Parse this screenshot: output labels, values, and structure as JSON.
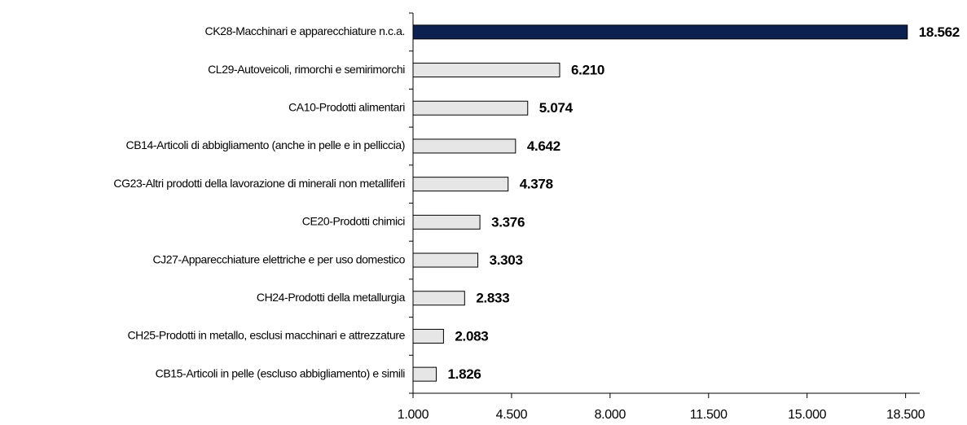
{
  "chart_data": {
    "type": "hbar",
    "categories": [
      "CK28-Macchinari e apparecchiature n.c.a.",
      "CL29-Autoveicoli, rimorchi e semirimorchi",
      "CA10-Prodotti alimentari",
      "CB14-Articoli di abbigliamento (anche in pelle e in pelliccia)",
      "CG23-Altri prodotti della lavorazione di minerali non metalliferi",
      "CE20-Prodotti chimici",
      "CJ27-Apparecchiature elettriche e per uso domestico",
      "CH24-Prodotti della metallurgia",
      "CH25-Prodotti in metallo, esclusi macchinari e attrezzature",
      "CB15-Articoli in pelle (escluso abbigliamento) e simili"
    ],
    "values": [
      18562,
      6210,
      5074,
      4642,
      4378,
      3376,
      3303,
      2833,
      2083,
      1826
    ],
    "value_labels": [
      "18.562",
      "6.210",
      "5.074",
      "4.642",
      "4.378",
      "3.376",
      "3.303",
      "2.833",
      "2.083",
      "1.826"
    ],
    "colors": [
      "#0d2150",
      "#e6e6e6",
      "#e6e6e6",
      "#e6e6e6",
      "#e6e6e6",
      "#e6e6e6",
      "#e6e6e6",
      "#e6e6e6",
      "#e6e6e6",
      "#e6e6e6"
    ],
    "xlim": [
      1000,
      19000
    ],
    "xticks": [
      {
        "value": 1000,
        "label": "1.000"
      },
      {
        "value": 4500,
        "label": "4.500"
      },
      {
        "value": 8000,
        "label": "8.000"
      },
      {
        "value": 11500,
        "label": "11.500"
      },
      {
        "value": 15000,
        "label": "15.000"
      },
      {
        "value": 18500,
        "label": "18.500"
      }
    ]
  }
}
